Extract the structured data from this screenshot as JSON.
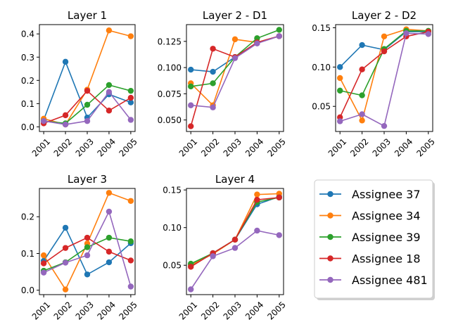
{
  "chart_data": {
    "type": "line",
    "years": [
      "2001",
      "2002",
      "2003",
      "2004",
      "2005"
    ],
    "series_colors": {
      "Assignee 37": "#1f77b4",
      "Assignee 34": "#ff7f0e",
      "Assignee 39": "#2ca02c",
      "Assignee 18": "#d62728",
      "Assignee 481": "#9467bd"
    },
    "legend": {
      "placement": "bottom-right",
      "entries": [
        "Assignee 37",
        "Assignee 34",
        "Assignee 39",
        "Assignee 18",
        "Assignee 481"
      ]
    },
    "panels": [
      {
        "title": "Layer 1",
        "ylim": [
          -0.02,
          0.44
        ],
        "yticks": [
          "0.0",
          "0.1",
          "0.2",
          "0.3",
          "0.4"
        ],
        "ytick_values": [
          0.0,
          0.1,
          0.2,
          0.3,
          0.4
        ],
        "series": [
          {
            "name": "Assignee 37",
            "values": [
              0.03,
              0.28,
              0.04,
              0.14,
              0.105
            ]
          },
          {
            "name": "Assignee 34",
            "values": [
              0.035,
              0.01,
              0.16,
              0.415,
              0.39
            ]
          },
          {
            "name": "Assignee 39",
            "values": [
              0.025,
              0.015,
              0.095,
              0.18,
              0.155
            ]
          },
          {
            "name": "Assignee 18",
            "values": [
              0.015,
              0.05,
              0.155,
              0.07,
              0.125
            ]
          },
          {
            "name": "Assignee 481",
            "values": [
              0.025,
              0.01,
              0.025,
              0.15,
              0.03
            ]
          }
        ]
      },
      {
        "title": "Layer 2 - D1",
        "ylim": [
          0.039,
          0.141
        ],
        "yticks": [
          "0.050",
          "0.075",
          "0.100",
          "0.125"
        ],
        "ytick_values": [
          0.05,
          0.075,
          0.1,
          0.125
        ],
        "series": [
          {
            "name": "Assignee 37",
            "values": [
              0.098,
              0.096,
              0.11,
              0.124,
              0.13
            ]
          },
          {
            "name": "Assignee 34",
            "values": [
              0.085,
              0.064,
              0.127,
              0.124,
              0.13
            ]
          },
          {
            "name": "Assignee 39",
            "values": [
              0.082,
              0.085,
              0.11,
              0.128,
              0.136
            ]
          },
          {
            "name": "Assignee 18",
            "values": [
              0.044,
              0.118,
              0.11,
              0.124,
              0.13
            ]
          },
          {
            "name": "Assignee 481",
            "values": [
              0.064,
              0.062,
              0.109,
              0.123,
              0.13
            ]
          }
        ]
      },
      {
        "title": "Layer 2 - D2",
        "ylim": [
          0.018,
          0.154
        ],
        "yticks": [
          "0.05",
          "0.10",
          "0.15"
        ],
        "ytick_values": [
          0.05,
          0.1,
          0.15
        ],
        "series": [
          {
            "name": "Assignee 37",
            "values": [
              0.1,
              0.128,
              0.122,
              0.145,
              0.145
            ]
          },
          {
            "name": "Assignee 34",
            "values": [
              0.086,
              0.032,
              0.139,
              0.148,
              0.146
            ]
          },
          {
            "name": "Assignee 39",
            "values": [
              0.07,
              0.064,
              0.123,
              0.146,
              0.146
            ]
          },
          {
            "name": "Assignee 18",
            "values": [
              0.036,
              0.097,
              0.12,
              0.139,
              0.145
            ]
          },
          {
            "name": "Assignee 481",
            "values": [
              0.031,
              0.04,
              0.025,
              0.143,
              0.142
            ]
          }
        ]
      },
      {
        "title": "Layer 3",
        "ylim": [
          -0.012,
          0.277
        ],
        "yticks": [
          "0.0",
          "0.1",
          "0.2"
        ],
        "ytick_values": [
          0.0,
          0.1,
          0.2
        ],
        "series": [
          {
            "name": "Assignee 37",
            "values": [
              0.08,
              0.17,
              0.043,
              0.076,
              0.128
            ]
          },
          {
            "name": "Assignee 34",
            "values": [
              0.095,
              0.002,
              0.127,
              0.265,
              0.243
            ]
          },
          {
            "name": "Assignee 39",
            "values": [
              0.053,
              0.076,
              0.117,
              0.143,
              0.133
            ]
          },
          {
            "name": "Assignee 18",
            "values": [
              0.073,
              0.115,
              0.143,
              0.105,
              0.081
            ]
          },
          {
            "name": "Assignee 481",
            "values": [
              0.048,
              0.075,
              0.095,
              0.214,
              0.01
            ]
          }
        ]
      },
      {
        "title": "Layer 4",
        "ylim": [
          0.011,
          0.152
        ],
        "yticks": [
          "0.05",
          "0.10",
          "0.15"
        ],
        "ytick_values": [
          0.05,
          0.1,
          0.15
        ],
        "series": [
          {
            "name": "Assignee 37",
            "values": [
              0.05,
              0.066,
              0.084,
              0.131,
              0.141
            ]
          },
          {
            "name": "Assignee 34",
            "values": [
              0.05,
              0.065,
              0.084,
              0.144,
              0.145
            ]
          },
          {
            "name": "Assignee 39",
            "values": [
              0.052,
              0.066,
              0.084,
              0.134,
              0.14
            ]
          },
          {
            "name": "Assignee 18",
            "values": [
              0.048,
              0.066,
              0.084,
              0.137,
              0.14
            ]
          },
          {
            "name": "Assignee 481",
            "values": [
              0.018,
              0.062,
              0.073,
              0.096,
              0.09
            ]
          }
        ]
      }
    ]
  }
}
